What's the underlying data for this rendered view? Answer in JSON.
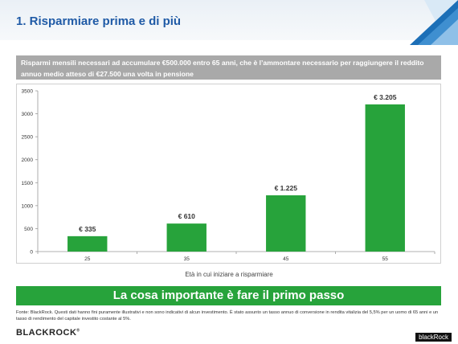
{
  "header": {
    "title": "1. Risparmiare prima e di più"
  },
  "banner": {
    "text": "Risparmi mensili necessari ad accumulare  €500.000 entro 65 anni, che è l’ammontare necessario per raggiungere il reddito annuo medio atteso di €27.500 una volta in pensione"
  },
  "chart_data": {
    "type": "bar",
    "categories": [
      "25",
      "35",
      "45",
      "55"
    ],
    "values": [
      335,
      610,
      1225,
      3205
    ],
    "data_labels": [
      "€ 335",
      "€ 610",
      "€ 1.225",
      "€ 3.205"
    ],
    "xlabel": "Età in cui iniziare a risparmiare",
    "ylabel": "",
    "ylim": [
      0,
      3500
    ],
    "yticks": [
      0,
      500,
      1000,
      1500,
      2000,
      2500,
      3000,
      3500
    ],
    "bar_color": "#27a33b",
    "grid": false
  },
  "cta": {
    "text": "La cosa importante è fare il primo passo"
  },
  "footnote": {
    "text": "Fonte: BlackRock. Questi dati hanno fini puramente illustrativi e non sono indicativi di alcun investimento. È stato assunto un tasso annuo di conversione in rendita vitalizia del 5,5% per un uomo di 65 anni e un tasso di rendimento del capitale investito costante al 5%."
  },
  "logo": {
    "text": "BLACKROCK",
    "mark": "®"
  },
  "watermark": {
    "text": "blackRock"
  },
  "colors": {
    "title": "#1f5aa6",
    "accent_green": "#27a33b",
    "banner_gray": "#a9a9a9"
  }
}
